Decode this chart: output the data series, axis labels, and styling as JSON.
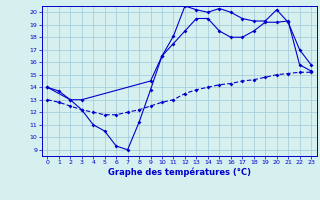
{
  "title": "Graphe des températures (°C)",
  "bg_color": "#d6f0f0",
  "grid_color": "#a0c8d8",
  "line_color": "#0000cc",
  "xlim": [
    -0.5,
    23.5
  ],
  "ylim": [
    8.5,
    20.5
  ],
  "yticks": [
    9,
    10,
    11,
    12,
    13,
    14,
    15,
    16,
    17,
    18,
    19,
    20
  ],
  "xticks": [
    0,
    1,
    2,
    3,
    4,
    5,
    6,
    7,
    8,
    9,
    10,
    11,
    12,
    13,
    14,
    15,
    16,
    17,
    18,
    19,
    20,
    21,
    22,
    23
  ],
  "s1_x": [
    0,
    1,
    2,
    3,
    4,
    5,
    6,
    7,
    8,
    9,
    10,
    11,
    12,
    13,
    14,
    15,
    16,
    17,
    18,
    19,
    20,
    21,
    22,
    23
  ],
  "s1_y": [
    14.0,
    13.7,
    13.0,
    12.2,
    11.0,
    10.5,
    9.3,
    9.0,
    11.2,
    13.8,
    16.5,
    18.1,
    20.5,
    20.2,
    20.0,
    20.3,
    20.0,
    19.5,
    19.3,
    19.3,
    20.2,
    19.2,
    17.0,
    15.8
  ],
  "s2_x": [
    0,
    2,
    3,
    9,
    10,
    11,
    12,
    13,
    14,
    15,
    16,
    17,
    18,
    19,
    20,
    21,
    22,
    23
  ],
  "s2_y": [
    14.0,
    13.0,
    13.0,
    14.5,
    16.5,
    17.5,
    18.5,
    19.5,
    19.5,
    18.5,
    18.0,
    18.0,
    18.5,
    19.2,
    19.2,
    19.3,
    15.8,
    15.3
  ],
  "s3_x": [
    0,
    1,
    2,
    3,
    4,
    5,
    6,
    7,
    8,
    9,
    10,
    11,
    12,
    13,
    14,
    15,
    16,
    17,
    18,
    19,
    20,
    21,
    22,
    23
  ],
  "s3_y": [
    13.0,
    12.8,
    12.5,
    12.2,
    12.0,
    11.8,
    11.8,
    12.0,
    12.2,
    12.5,
    12.8,
    13.0,
    13.5,
    13.8,
    14.0,
    14.2,
    14.3,
    14.5,
    14.6,
    14.8,
    15.0,
    15.1,
    15.2,
    15.2
  ]
}
